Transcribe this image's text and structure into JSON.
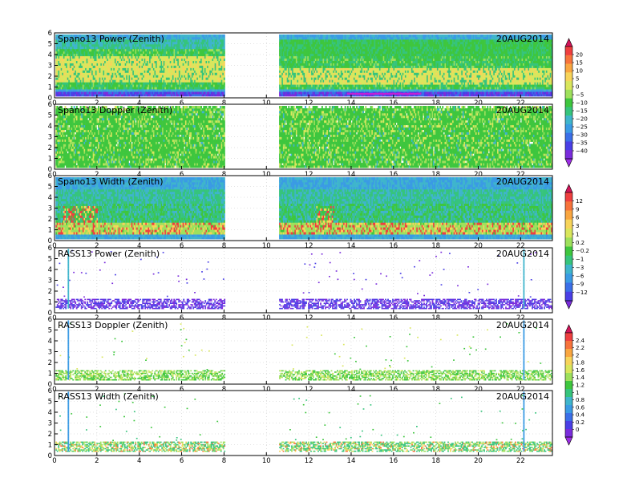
{
  "chart_data": {
    "type": "heatmap",
    "date": "20AUG2014",
    "x_range": [
      0,
      23.5
    ],
    "y_range": [
      0,
      6
    ],
    "gap": [
      8.0,
      10.6
    ],
    "x_ticks": [
      0,
      2,
      4,
      6,
      8,
      10,
      12,
      14,
      16,
      18,
      20,
      22
    ],
    "y_ticks": [
      0,
      1,
      2,
      3,
      4,
      5,
      6
    ],
    "panels": [
      {
        "title": "Spano13 Power (Zenith)",
        "kind": "power",
        "scale": "A"
      },
      {
        "title": "Spano13 Doppler (Zenith)",
        "kind": "doppler",
        "scale": "A"
      },
      {
        "title": "Spano13 Width (Zenith)",
        "kind": "width",
        "scale": "B"
      },
      {
        "title": "RASS13 Power (Zenith)",
        "kind": "rass_power",
        "scale": "B"
      },
      {
        "title": "RASS13 Doppler (Zenith)",
        "kind": "rass_doppler",
        "scale": "C"
      },
      {
        "title": "RASS13 Width (Zenith)",
        "kind": "rass_width",
        "scale": "C"
      }
    ],
    "colorbars": [
      {
        "id": "A",
        "labels": [
          "20",
          "15",
          "10",
          "5",
          "0",
          "−5",
          "−10",
          "−15",
          "−20",
          "−25",
          "−30",
          "−35",
          "−40"
        ],
        "colors": [
          "#d4145a",
          "#ef3f3f",
          "#f7733b",
          "#f9a640",
          "#f7d45a",
          "#d9e65c",
          "#9ee05c",
          "#3ec63e",
          "#36c47c",
          "#3fb5cc",
          "#3a9be4",
          "#3b6fe8",
          "#4a3fe6",
          "#7a2cdc",
          "#9d2de6"
        ]
      },
      {
        "id": "B",
        "labels": [
          "12",
          "9",
          "6",
          "3",
          "1",
          "0.2",
          "−0.2",
          "−1",
          "−3",
          "−6",
          "−9",
          "−12"
        ],
        "colors": [
          "#d4145a",
          "#ef3f3f",
          "#f7733b",
          "#f9a640",
          "#f7d45a",
          "#d9e65c",
          "#9ee05c",
          "#3ec63e",
          "#36c47c",
          "#3fb5cc",
          "#3a9be4",
          "#3b6fe8",
          "#4a3fe6",
          "#7a2cdc"
        ]
      },
      {
        "id": "C",
        "labels": [
          "2.4",
          "2.2",
          "2",
          "1.8",
          "1.6",
          "1.4",
          "1.2",
          "1",
          "0.8",
          "0.6",
          "0.4",
          "0.2",
          "0"
        ],
        "colors": [
          "#d4145a",
          "#ef3f3f",
          "#f7733b",
          "#f9a640",
          "#f7d45a",
          "#d9e65c",
          "#9ee05c",
          "#3ec63e",
          "#36c47c",
          "#3fb5cc",
          "#3a9be4",
          "#3b6fe8",
          "#4a3fe6",
          "#7a2cdc",
          "#9d2de6"
        ]
      }
    ]
  }
}
